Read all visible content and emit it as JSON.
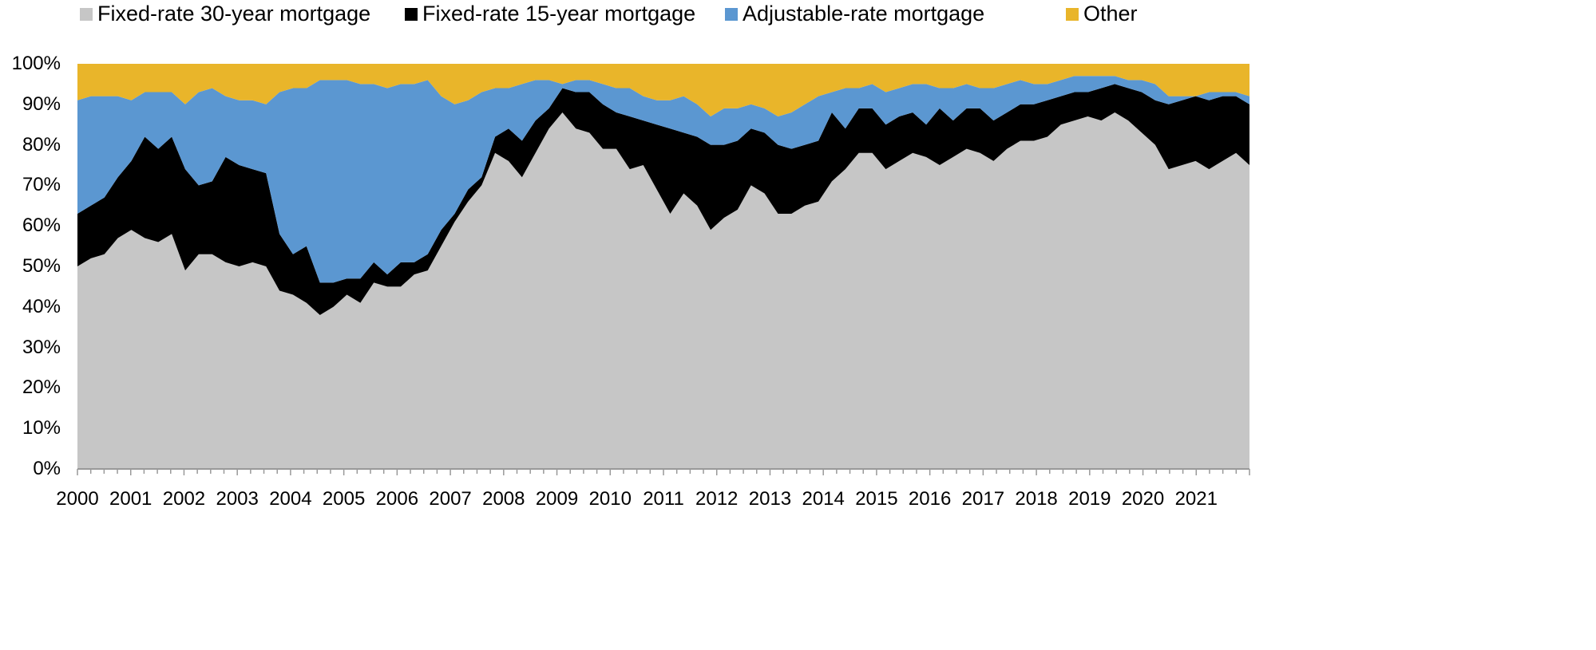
{
  "chart_data": {
    "type": "area",
    "stacked": true,
    "title": "",
    "xlabel": "",
    "ylabel": "",
    "ylim": [
      0,
      100
    ],
    "y_ticks": [
      "0%",
      "10%",
      "20%",
      "30%",
      "40%",
      "50%",
      "60%",
      "70%",
      "80%",
      "90%",
      "100%"
    ],
    "x_ticks": [
      "2000",
      "2001",
      "2002",
      "2003",
      "2004",
      "2005",
      "2006",
      "2007",
      "2008",
      "2009",
      "2010",
      "2011",
      "2012",
      "2013",
      "2014",
      "2015",
      "2016",
      "2017",
      "2018",
      "2019",
      "2020",
      "2021"
    ],
    "grid": false,
    "legend_position": "top",
    "x_frequency": "quarterly",
    "x_start": "2000-Q1",
    "x_end": "2021-Q4",
    "series": [
      {
        "name": "Fixed-rate 30-year mortgage",
        "color": "#c6c6c6",
        "values": [
          50,
          52,
          53,
          57,
          59,
          57,
          56,
          58,
          49,
          53,
          53,
          51,
          50,
          51,
          50,
          44,
          43,
          41,
          38,
          40,
          43,
          41,
          46,
          45,
          45,
          48,
          49,
          55,
          61,
          66,
          70,
          78,
          76,
          72,
          78,
          84,
          88,
          84,
          83,
          79,
          79,
          74,
          75,
          69,
          63,
          68,
          65,
          59,
          62,
          64,
          70,
          68,
          63,
          63,
          65,
          66,
          71,
          74,
          78,
          78,
          74,
          76,
          78,
          77,
          75,
          77,
          79,
          78,
          76,
          79,
          81,
          81,
          82,
          85,
          86,
          87,
          86,
          88,
          86,
          83,
          80,
          74,
          75,
          76,
          74,
          76,
          78,
          75
        ]
      },
      {
        "name": "Fixed-rate 15-year mortgage",
        "color": "#000000",
        "values": [
          13,
          13,
          14,
          15,
          17,
          25,
          23,
          24,
          25,
          17,
          18,
          26,
          25,
          23,
          23,
          14,
          10,
          14,
          8,
          6,
          4,
          6,
          5,
          3,
          6,
          3,
          4,
          4,
          2,
          3,
          2,
          4,
          8,
          9,
          8,
          5,
          6,
          9,
          10,
          11,
          9,
          13,
          11,
          16,
          21,
          15,
          17,
          21,
          18,
          17,
          14,
          15,
          17,
          16,
          15,
          15,
          17,
          10,
          11,
          11,
          11,
          11,
          10,
          8,
          14,
          9,
          10,
          11,
          10,
          9,
          9,
          9,
          9,
          7,
          7,
          6,
          8,
          7,
          8,
          10,
          11,
          16,
          16,
          16,
          17,
          16,
          14,
          15
        ]
      },
      {
        "name": "Adjustable-rate mortgage",
        "color": "#5b97d1",
        "values": [
          28,
          27,
          25,
          20,
          15,
          11,
          14,
          11,
          16,
          23,
          23,
          15,
          16,
          17,
          17,
          35,
          41,
          39,
          50,
          50,
          49,
          48,
          44,
          46,
          44,
          44,
          43,
          33,
          27,
          22,
          21,
          12,
          10,
          14,
          10,
          7,
          1,
          3,
          3,
          5,
          6,
          7,
          6,
          6,
          7,
          9,
          8,
          7,
          9,
          8,
          6,
          6,
          7,
          9,
          10,
          11,
          5,
          10,
          5,
          6,
          8,
          7,
          7,
          10,
          5,
          8,
          6,
          5,
          8,
          7,
          6,
          5,
          4,
          4,
          4,
          4,
          3,
          2,
          2,
          3,
          4,
          2,
          1,
          0,
          2,
          1,
          1,
          2
        ]
      },
      {
        "name": "Other",
        "color": "#e9b52a",
        "values": [
          9,
          8,
          8,
          8,
          9,
          7,
          7,
          7,
          10,
          7,
          6,
          8,
          9,
          9,
          10,
          7,
          6,
          6,
          4,
          4,
          4,
          5,
          5,
          6,
          5,
          5,
          4,
          8,
          10,
          9,
          7,
          6,
          6,
          5,
          4,
          4,
          5,
          4,
          4,
          5,
          6,
          6,
          8,
          9,
          9,
          8,
          10,
          13,
          11,
          11,
          10,
          11,
          13,
          12,
          10,
          8,
          7,
          6,
          6,
          5,
          7,
          6,
          5,
          5,
          6,
          6,
          5,
          6,
          6,
          5,
          4,
          5,
          5,
          4,
          3,
          3,
          3,
          3,
          4,
          4,
          5,
          8,
          8,
          8,
          7,
          7,
          7,
          8
        ]
      }
    ]
  }
}
